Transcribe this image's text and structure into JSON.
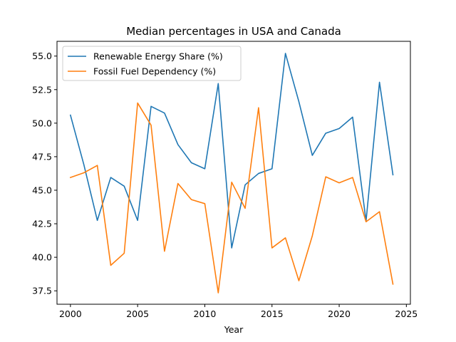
{
  "chart_data": {
    "type": "line",
    "title": "Median percentages in USA and Canada",
    "xlabel": "Year",
    "ylabel": "",
    "xlim": [
      1999,
      2025.3
    ],
    "ylim": [
      36.5,
      56.1
    ],
    "x_ticks": [
      2000,
      2005,
      2010,
      2015,
      2020,
      2025
    ],
    "y_ticks": [
      37.5,
      40.0,
      42.5,
      45.0,
      47.5,
      50.0,
      52.5,
      55.0
    ],
    "grid": false,
    "legend": "upper-left",
    "x": [
      2000,
      2001,
      2002,
      2003,
      2004,
      2005,
      2006,
      2007,
      2008,
      2009,
      2010,
      2011,
      2012,
      2013,
      2014,
      2015,
      2016,
      2017,
      2018,
      2019,
      2020,
      2021,
      2022,
      2023,
      2024
    ],
    "series": [
      {
        "name": "Renewable Energy Share (%)",
        "color": "#1f77b4",
        "values": [
          50.6,
          46.9,
          42.75,
          45.95,
          45.3,
          42.75,
          51.25,
          50.75,
          48.4,
          47.05,
          46.6,
          52.95,
          40.7,
          45.4,
          46.25,
          46.6,
          55.2,
          51.6,
          47.6,
          49.25,
          49.6,
          50.45,
          42.7,
          53.05,
          46.15
        ]
      },
      {
        "name": "Fossil Fuel Dependency (%)",
        "color": "#ff7f0e",
        "values": [
          45.95,
          46.3,
          46.85,
          39.4,
          40.3,
          51.5,
          49.85,
          40.45,
          45.5,
          44.3,
          44.0,
          37.35,
          45.6,
          43.65,
          51.15,
          40.7,
          41.45,
          38.25,
          41.6,
          46.0,
          45.55,
          45.95,
          42.65,
          43.4,
          38.0
        ]
      }
    ]
  }
}
